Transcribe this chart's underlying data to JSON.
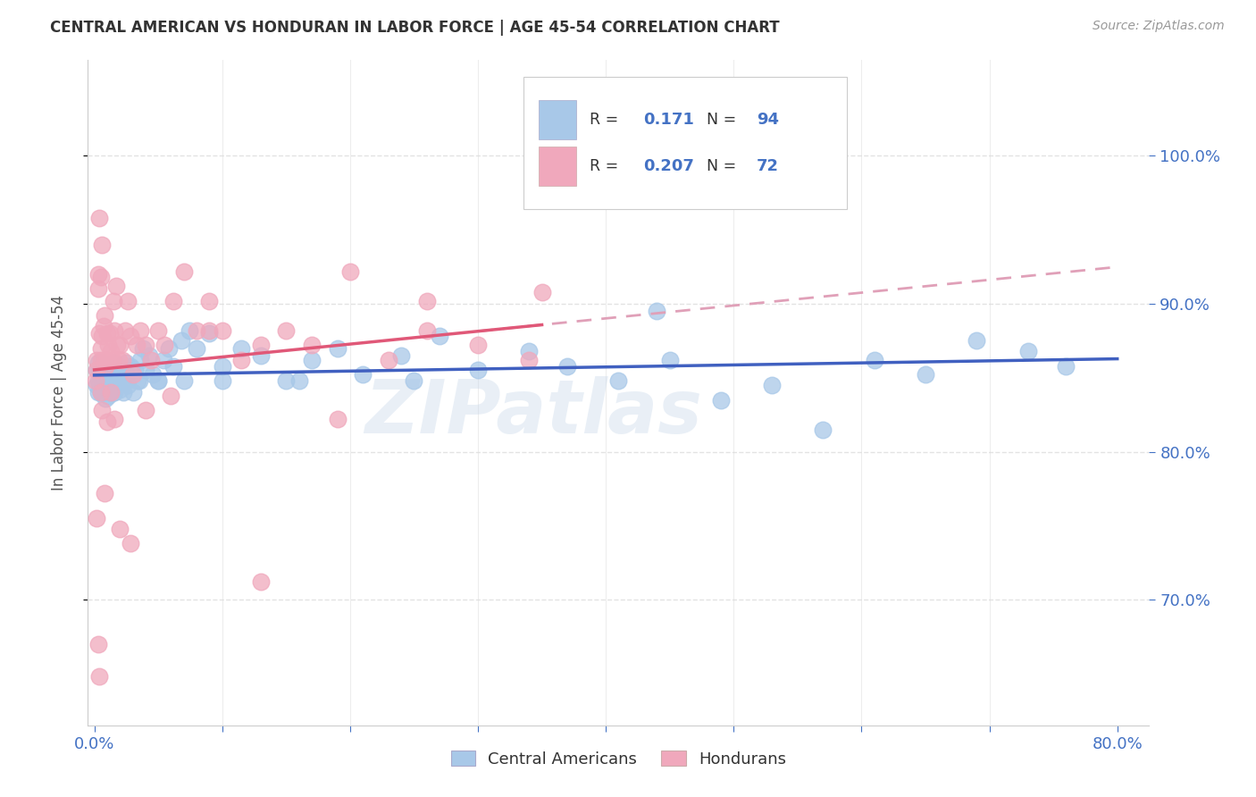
{
  "title": "CENTRAL AMERICAN VS HONDURAN IN LABOR FORCE | AGE 45-54 CORRELATION CHART",
  "source": "Source: ZipAtlas.com",
  "ylabel": "In Labor Force | Age 45-54",
  "blue_color": "#a8c8e8",
  "pink_color": "#f0a8bc",
  "blue_line_color": "#4060c0",
  "pink_line_color": "#e05878",
  "pink_dash_color": "#e0a0b8",
  "R_blue": 0.171,
  "N_blue": 94,
  "R_pink": 0.207,
  "N_pink": 72,
  "legend_label_blue": "Central Americans",
  "legend_label_pink": "Hondurans",
  "watermark": "ZIPatlas",
  "background_color": "#ffffff",
  "grid_color": "#dddddd",
  "xlim_min": -0.005,
  "xlim_max": 0.825,
  "ylim_min": 0.615,
  "ylim_max": 1.065
}
